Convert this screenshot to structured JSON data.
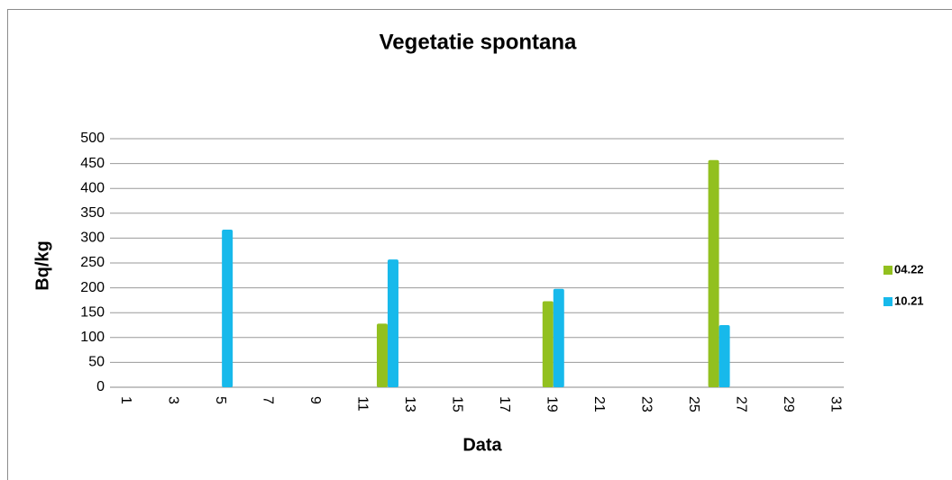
{
  "chart_data": {
    "type": "bar",
    "title": "Vegetatie spontana",
    "x_label": "Data",
    "y_label": "Bq/kg",
    "categories": [
      "1",
      null,
      "3",
      null,
      "5",
      null,
      "7",
      null,
      "9",
      null,
      "11",
      null,
      "13",
      null,
      "15",
      null,
      "17",
      null,
      "19",
      null,
      "21",
      null,
      "23",
      null,
      "25",
      null,
      "27",
      null,
      "29",
      null,
      "31"
    ],
    "series": [
      {
        "name": "04.22",
        "color": "#92c01f",
        "values": [
          null,
          null,
          null,
          null,
          null,
          null,
          null,
          null,
          null,
          null,
          null,
          128,
          null,
          null,
          null,
          null,
          null,
          null,
          173,
          null,
          null,
          null,
          null,
          null,
          null,
          457,
          null,
          null,
          null,
          null,
          null
        ]
      },
      {
        "name": "10.21",
        "color": "#17b9eb",
        "values": [
          null,
          null,
          null,
          null,
          317,
          null,
          null,
          null,
          null,
          null,
          null,
          257,
          null,
          null,
          null,
          null,
          null,
          null,
          198,
          null,
          null,
          null,
          null,
          null,
          null,
          125,
          null,
          null,
          null,
          null,
          null
        ]
      }
    ],
    "ylim": [
      0,
      500
    ],
    "yticks": [
      0,
      50,
      100,
      150,
      200,
      250,
      300,
      350,
      400,
      450,
      500
    ],
    "grid": true,
    "legend": "right"
  }
}
